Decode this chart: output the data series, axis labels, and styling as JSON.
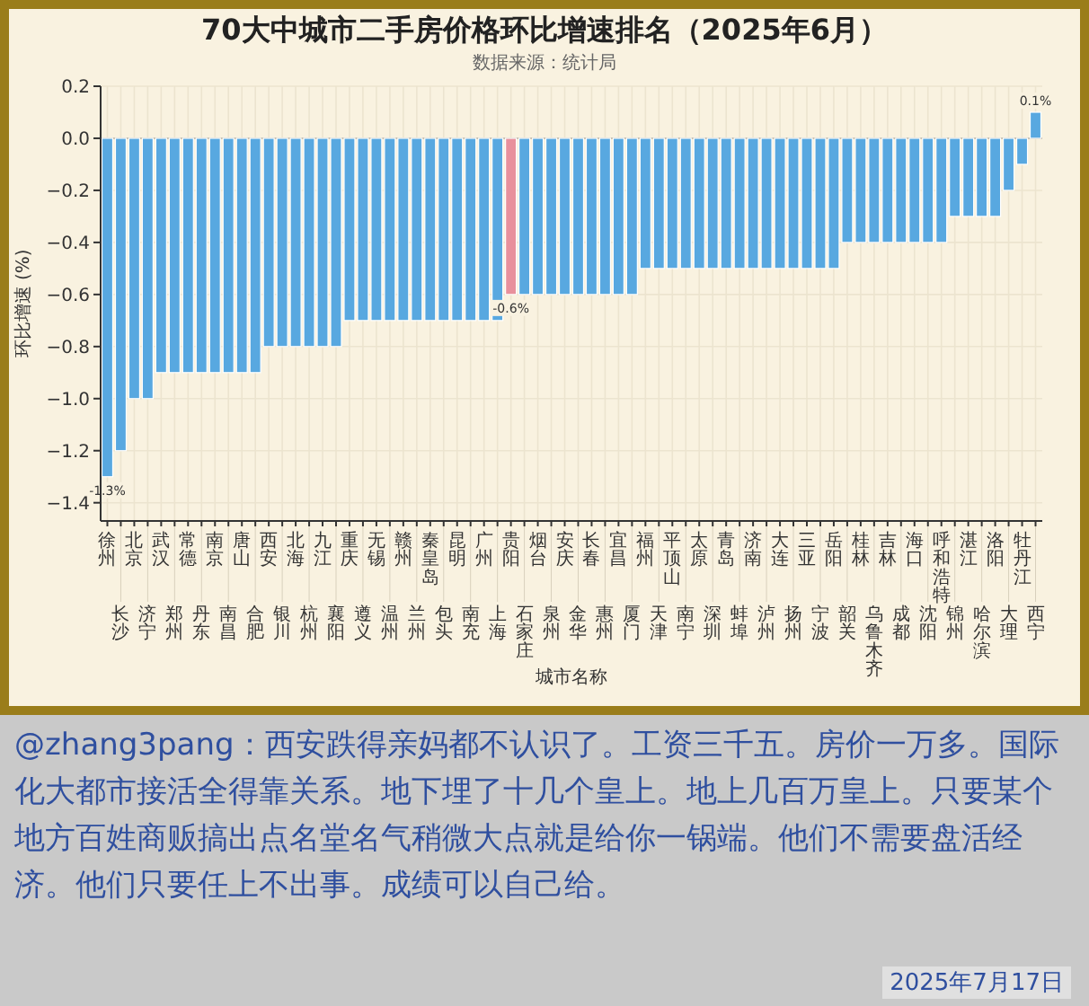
{
  "chart_data": {
    "type": "bar",
    "title": "70大中城市二手房价格环比增速排名（2025年6月）",
    "subtitle": "数据来源：统计局",
    "xlabel": "城市名称",
    "ylabel": "环比增速 (%)",
    "categories": [
      "徐州",
      "长沙",
      "北京",
      "济宁",
      "武汉",
      "郑州",
      "常德",
      "丹东",
      "南京",
      "南昌",
      "唐山",
      "合肥",
      "西安",
      "银川",
      "北海",
      "杭州",
      "九江",
      "襄阳",
      "重庆",
      "遵义",
      "无锡",
      "温州",
      "赣州",
      "兰州",
      "秦皇岛",
      "包头",
      "昆明",
      "南充",
      "广州",
      "上海",
      "贵阳",
      "石家庄",
      "烟台",
      "泉州",
      "安庆",
      "金华",
      "长春",
      "惠州",
      "宜昌",
      "厦门",
      "福州",
      "天津",
      "平顶山",
      "南宁",
      "太原",
      "深圳",
      "青岛",
      "蚌埠",
      "济南",
      "泸州",
      "大连",
      "扬州",
      "三亚",
      "宁波",
      "岳阳",
      "韶关",
      "桂林",
      "乌鲁木齐",
      "吉林",
      "成都",
      "海口",
      "沈阳",
      "呼和浩特",
      "锦州",
      "湛江",
      "哈尔滨",
      "洛阳",
      "大理",
      "牡丹江",
      "西宁"
    ],
    "values": [
      -1.3,
      -1.2,
      -1.0,
      -1.0,
      -0.9,
      -0.9,
      -0.9,
      -0.9,
      -0.9,
      -0.9,
      -0.9,
      -0.9,
      -0.8,
      -0.8,
      -0.8,
      -0.8,
      -0.8,
      -0.8,
      -0.7,
      -0.7,
      -0.7,
      -0.7,
      -0.7,
      -0.7,
      -0.7,
      -0.7,
      -0.7,
      -0.7,
      -0.7,
      -0.7,
      -0.6,
      -0.6,
      -0.6,
      -0.6,
      -0.6,
      -0.6,
      -0.6,
      -0.6,
      -0.6,
      -0.6,
      -0.5,
      -0.5,
      -0.5,
      -0.5,
      -0.5,
      -0.5,
      -0.5,
      -0.5,
      -0.5,
      -0.5,
      -0.5,
      -0.5,
      -0.5,
      -0.5,
      -0.5,
      -0.4,
      -0.4,
      -0.4,
      -0.4,
      -0.4,
      -0.4,
      -0.4,
      -0.4,
      -0.3,
      -0.3,
      -0.3,
      -0.3,
      -0.2,
      -0.1,
      0.1
    ],
    "colors": [
      "#58a8e0",
      "#58a8e0",
      "#58a8e0",
      "#58a8e0",
      "#58a8e0",
      "#58a8e0",
      "#58a8e0",
      "#58a8e0",
      "#58a8e0",
      "#58a8e0",
      "#58a8e0",
      "#58a8e0",
      "#58a8e0",
      "#58a8e0",
      "#58a8e0",
      "#58a8e0",
      "#58a8e0",
      "#58a8e0",
      "#58a8e0",
      "#58a8e0",
      "#58a8e0",
      "#58a8e0",
      "#58a8e0",
      "#58a8e0",
      "#58a8e0",
      "#58a8e0",
      "#58a8e0",
      "#58a8e0",
      "#58a8e0",
      "#58a8e0",
      "#e8909c",
      "#58a8e0",
      "#58a8e0",
      "#58a8e0",
      "#58a8e0",
      "#58a8e0",
      "#58a8e0",
      "#58a8e0",
      "#58a8e0",
      "#58a8e0",
      "#58a8e0",
      "#58a8e0",
      "#58a8e0",
      "#58a8e0",
      "#58a8e0",
      "#58a8e0",
      "#58a8e0",
      "#58a8e0",
      "#58a8e0",
      "#58a8e0",
      "#58a8e0",
      "#58a8e0",
      "#58a8e0",
      "#58a8e0",
      "#58a8e0",
      "#58a8e0",
      "#58a8e0",
      "#58a8e0",
      "#58a8e0",
      "#58a8e0",
      "#58a8e0",
      "#58a8e0",
      "#58a8e0",
      "#58a8e0",
      "#58a8e0",
      "#58a8e0",
      "#58a8e0",
      "#58a8e0",
      "#58a8e0",
      "#58a8e0"
    ],
    "value_labels": [
      "-1.3%",
      null,
      null,
      null,
      null,
      null,
      null,
      null,
      null,
      null,
      null,
      null,
      null,
      null,
      null,
      null,
      null,
      null,
      null,
      null,
      null,
      null,
      null,
      null,
      null,
      null,
      null,
      null,
      null,
      null,
      "-0.6%",
      null,
      null,
      null,
      null,
      null,
      null,
      null,
      null,
      null,
      null,
      null,
      null,
      null,
      null,
      null,
      null,
      null,
      null,
      null,
      null,
      null,
      null,
      null,
      null,
      null,
      null,
      null,
      null,
      null,
      null,
      null,
      null,
      null,
      null,
      null,
      null,
      null,
      null,
      "0.1%"
    ],
    "ylim": [
      -1.47,
      0.2
    ],
    "yticks": [
      {
        "value": 0.2,
        "label": "0.2"
      },
      {
        "value": 0.0,
        "label": "0.0"
      },
      {
        "value": -0.2,
        "label": "−0.2"
      },
      {
        "value": -0.4,
        "label": "−0.4"
      },
      {
        "value": -0.6,
        "label": "−0.6"
      },
      {
        "value": -0.8,
        "label": "−0.8"
      },
      {
        "value": -1.0,
        "label": "−1.0"
      },
      {
        "value": -1.2,
        "label": "−1.2"
      },
      {
        "value": -1.4,
        "label": "−1.4"
      }
    ],
    "grid": true,
    "ref_lines": [
      {
        "axis": "y",
        "value": 0,
        "color": "#c8c0b0"
      }
    ],
    "annotations": [
      "@zhang3pang：西安跌得亲妈都不认识了。工资三千五。房价一万多。国际化大都市接活全得靠关系。地下埋了十几个皇上。地上几百万皇上。只要某个地方百姓商贩搞出点名堂名气稍微大点就是给你一锅端。他们不需要盘活经济。他们只要任上不出事。成绩可以自己给。",
      "2025年7月17日"
    ]
  }
}
